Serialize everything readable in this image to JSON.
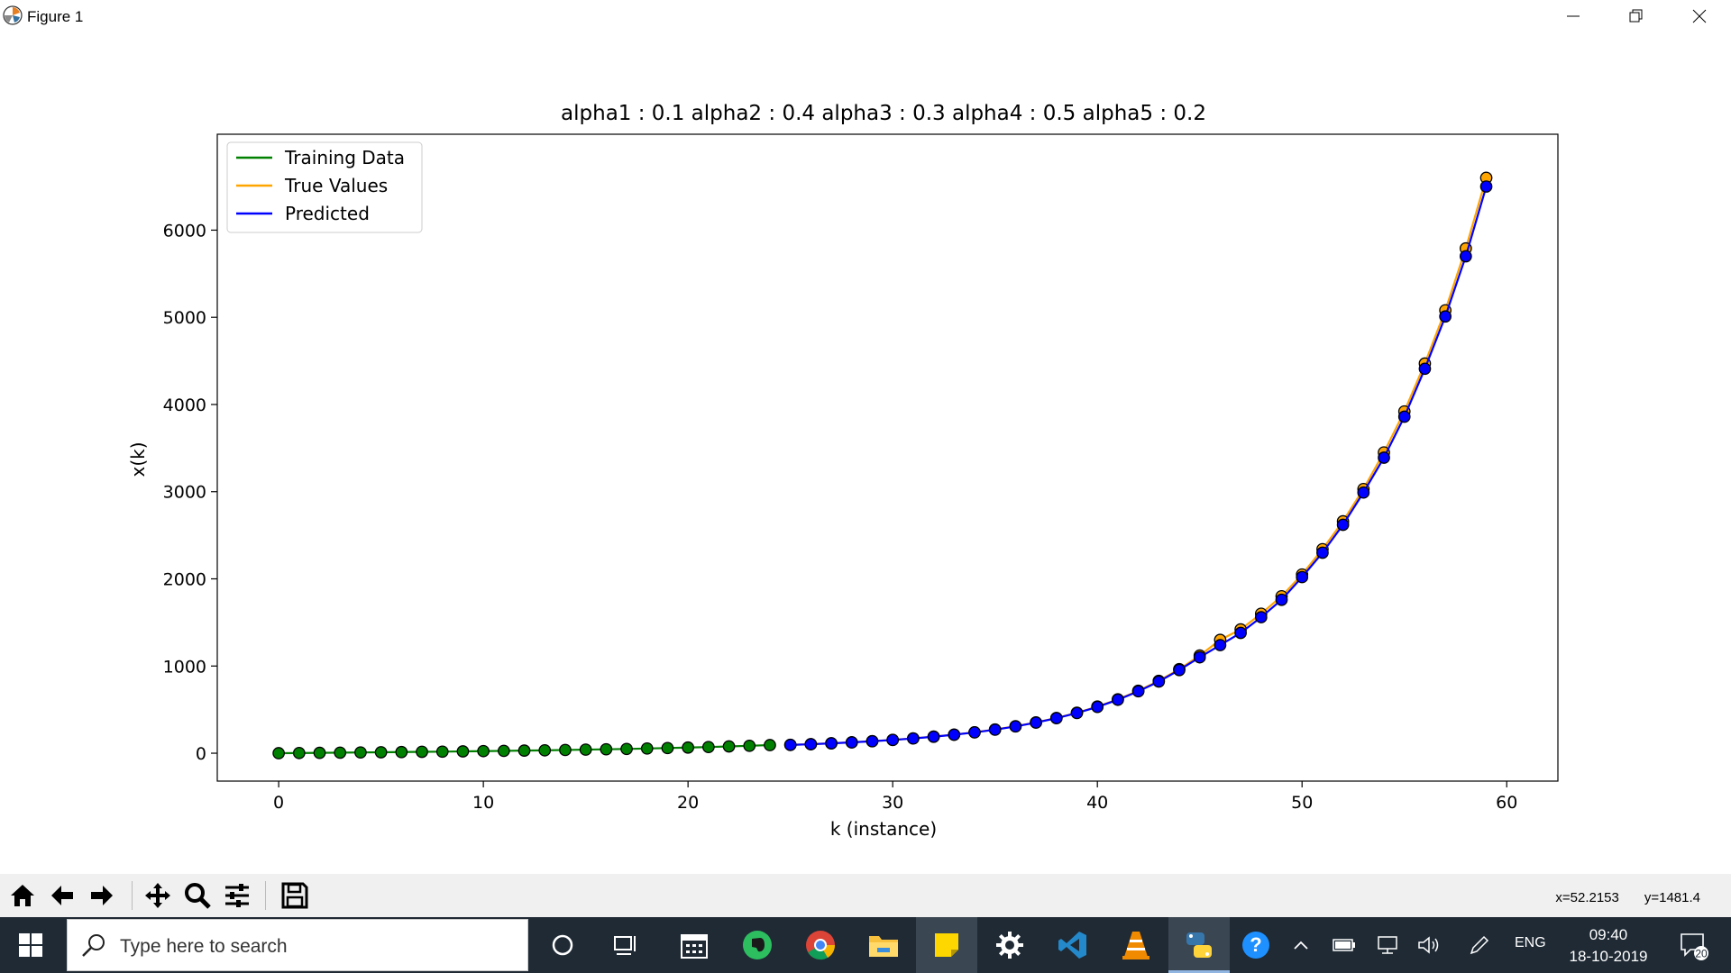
{
  "window": {
    "title": "Figure 1"
  },
  "chart_data": {
    "type": "line",
    "title": "alpha1 : 0.1 alpha2 : 0.4 alpha3 : 0.3 alpha4 : 0.5 alpha5 : 0.2",
    "xlabel": "k (instance)",
    "ylabel": "x(k)",
    "xlim": [
      -3,
      62.5
    ],
    "ylim": [
      -320,
      7100
    ],
    "xticks": [
      0,
      10,
      20,
      30,
      40,
      50,
      60
    ],
    "yticks": [
      0,
      1000,
      2000,
      3000,
      4000,
      5000,
      6000
    ],
    "legend_position": "upper-left",
    "series": [
      {
        "name": "Training Data",
        "color": "#008000",
        "x": [
          0,
          1,
          2,
          3,
          4,
          5,
          6,
          7,
          8,
          9,
          10,
          11,
          12,
          13,
          14,
          15,
          16,
          17,
          18,
          19,
          20,
          21,
          22,
          23,
          24
        ],
        "y": [
          0,
          2,
          4,
          6,
          9,
          11,
          13,
          16,
          18,
          21,
          24,
          27,
          30,
          33,
          37,
          41,
          45,
          49,
          54,
          59,
          65,
          71,
          78,
          85,
          93
        ]
      },
      {
        "name": "True Values",
        "color": "#ffa500",
        "x": [
          25,
          26,
          27,
          28,
          29,
          30,
          31,
          32,
          33,
          34,
          35,
          36,
          37,
          38,
          39,
          40,
          41,
          42,
          43,
          44,
          45,
          46,
          47,
          48,
          49,
          50,
          51,
          52,
          53,
          54,
          55,
          56,
          57,
          58,
          59
        ],
        "y": [
          96,
          104,
          114,
          125,
          138,
          153,
          170,
          190,
          213,
          240,
          272,
          309,
          353,
          404,
          464,
          535,
          618,
          716,
          830,
          964,
          1120,
          1300,
          1420,
          1600,
          1800,
          2050,
          2340,
          2660,
          3030,
          3450,
          3920,
          4470,
          5080,
          5790,
          6600
        ]
      },
      {
        "name": "Predicted",
        "color": "#0000ff",
        "x": [
          25,
          26,
          27,
          28,
          29,
          30,
          31,
          32,
          33,
          34,
          35,
          36,
          37,
          38,
          39,
          40,
          41,
          42,
          43,
          44,
          45,
          46,
          47,
          48,
          49,
          50,
          51,
          52,
          53,
          54,
          55,
          56,
          57,
          58,
          59
        ],
        "y": [
          95,
          103,
          113,
          124,
          137,
          152,
          169,
          189,
          212,
          239,
          270,
          307,
          351,
          402,
          461,
          531,
          613,
          710,
          822,
          954,
          1100,
          1240,
          1380,
          1560,
          1760,
          2020,
          2300,
          2620,
          2990,
          3390,
          3860,
          4410,
          5010,
          5700,
          6500
        ]
      }
    ]
  },
  "toolbar": {
    "buttons": [
      "home-icon",
      "back-icon",
      "forward-icon",
      "pan-icon",
      "zoom-icon",
      "configure-subplots-icon",
      "save-icon"
    ],
    "coord_x": "x=52.2153",
    "coord_y": "y=1481.4"
  },
  "taskbar": {
    "search_placeholder": "Type here to search",
    "language": "ENG",
    "time": "09:40",
    "date": "18-10-2019",
    "notification_count": "20"
  }
}
